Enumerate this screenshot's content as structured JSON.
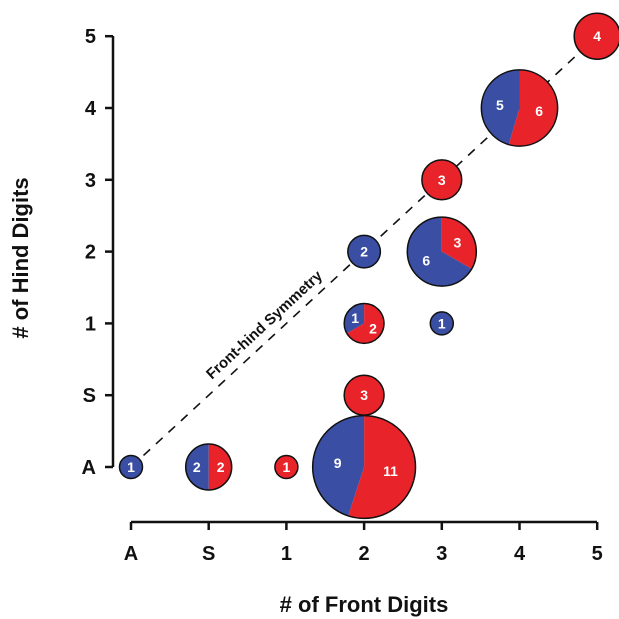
{
  "chart_data": {
    "type": "scatter",
    "subtype": "pie-bubble",
    "xlabel": "# of Front Digits",
    "ylabel": "# of Hind Digits",
    "x_categories": [
      "A",
      "S",
      "1",
      "2",
      "3",
      "4",
      "5"
    ],
    "y_categories": [
      "A",
      "S",
      "1",
      "2",
      "3",
      "4",
      "5"
    ],
    "series": [
      {
        "key": "blue",
        "color": "#3a4fa3"
      },
      {
        "key": "red",
        "color": "#e8232a"
      }
    ],
    "points": [
      {
        "x": "A",
        "y": "A",
        "blue": 1,
        "red": 0
      },
      {
        "x": "S",
        "y": "A",
        "blue": 2,
        "red": 2
      },
      {
        "x": "1",
        "y": "A",
        "blue": 0,
        "red": 1
      },
      {
        "x": "2",
        "y": "A",
        "blue": 9,
        "red": 11
      },
      {
        "x": "2",
        "y": "S",
        "blue": 0,
        "red": 3
      },
      {
        "x": "2",
        "y": "1",
        "blue": 1,
        "red": 2
      },
      {
        "x": "2",
        "y": "2",
        "blue": 2,
        "red": 0
      },
      {
        "x": "3",
        "y": "1",
        "blue": 1,
        "red": 0
      },
      {
        "x": "3",
        "y": "2",
        "blue": 6,
        "red": 3
      },
      {
        "x": "3",
        "y": "3",
        "blue": 0,
        "red": 3
      },
      {
        "x": "4",
        "y": "4",
        "blue": 5,
        "red": 6
      },
      {
        "x": "5",
        "y": "5",
        "blue": 0,
        "red": 4
      }
    ],
    "reference_line": {
      "label": "Front-hind Symmetry",
      "style": "dashed",
      "from": [
        "A",
        "A"
      ],
      "to": [
        "5",
        "5"
      ]
    },
    "grid": false,
    "legend": "none"
  }
}
